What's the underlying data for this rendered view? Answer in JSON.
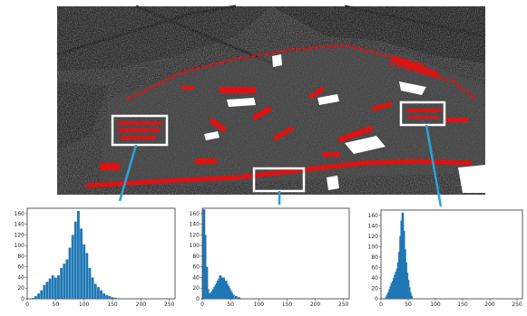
{
  "colors": {
    "highlight_box": "#ffffff",
    "connector": "#29a3d6",
    "detection_marks": "#e01010",
    "histogram_bars": "#1f77b4",
    "sar_background": "#3a3a3a"
  },
  "sar_image": {
    "description_icon": "sar-grayscale-image",
    "boxes": [
      "left-building-cluster",
      "bottom-road",
      "right-building-cluster"
    ]
  },
  "chart_data": [
    {
      "type": "bar",
      "name": "histogram-left",
      "xlim": [
        0,
        260
      ],
      "ylim": [
        0,
        170
      ],
      "xticks": [
        "0",
        "50",
        "100",
        "150",
        "200",
        "250"
      ],
      "yticks": [
        "0",
        "20",
        "40",
        "60",
        "80",
        "100",
        "120",
        "140",
        "160"
      ],
      "x": [
        10,
        15,
        20,
        25,
        30,
        35,
        40,
        45,
        50,
        55,
        60,
        65,
        70,
        75,
        80,
        85,
        90,
        95,
        100,
        105,
        110,
        115,
        120,
        125,
        130,
        135,
        140,
        145,
        150,
        155,
        160
      ],
      "values": [
        2,
        5,
        10,
        16,
        26,
        32,
        38,
        44,
        40,
        44,
        58,
        66,
        74,
        96,
        120,
        145,
        165,
        132,
        102,
        86,
        58,
        40,
        28,
        22,
        16,
        10,
        7,
        5,
        3,
        2,
        1
      ]
    },
    {
      "type": "bar",
      "name": "histogram-middle",
      "xlim": [
        0,
        260
      ],
      "ylim": [
        0,
        170
      ],
      "xticks": [
        "0",
        "50",
        "100",
        "150",
        "200",
        "250"
      ],
      "yticks": [
        "0",
        "20",
        "40",
        "60",
        "80",
        "100",
        "120",
        "140",
        "160"
      ],
      "x": [
        3,
        5,
        8,
        10,
        12,
        14,
        16,
        18,
        20,
        22,
        24,
        26,
        28,
        30,
        32,
        34,
        36,
        38,
        40,
        42,
        44,
        46,
        48,
        50,
        52,
        55,
        60,
        65,
        70
      ],
      "values": [
        168,
        120,
        60,
        18,
        8,
        10,
        12,
        15,
        18,
        22,
        26,
        30,
        34,
        38,
        44,
        40,
        36,
        40,
        30,
        34,
        28,
        24,
        20,
        16,
        12,
        8,
        5,
        3,
        1
      ]
    },
    {
      "type": "bar",
      "name": "histogram-right",
      "xlim": [
        0,
        260
      ],
      "ylim": [
        0,
        170
      ],
      "xticks": [
        "0",
        "50",
        "100",
        "150",
        "200",
        "250"
      ],
      "yticks": [
        "0",
        "20",
        "40",
        "60",
        "80",
        "100",
        "120",
        "140",
        "160"
      ],
      "x": [
        10,
        12,
        14,
        16,
        18,
        20,
        22,
        24,
        26,
        28,
        30,
        32,
        34,
        36,
        38,
        40,
        42,
        44,
        46,
        48,
        50,
        52,
        54,
        56
      ],
      "values": [
        4,
        8,
        12,
        18,
        24,
        30,
        34,
        40,
        46,
        52,
        58,
        70,
        90,
        120,
        150,
        165,
        130,
        95,
        70,
        50,
        36,
        22,
        12,
        6
      ]
    }
  ]
}
